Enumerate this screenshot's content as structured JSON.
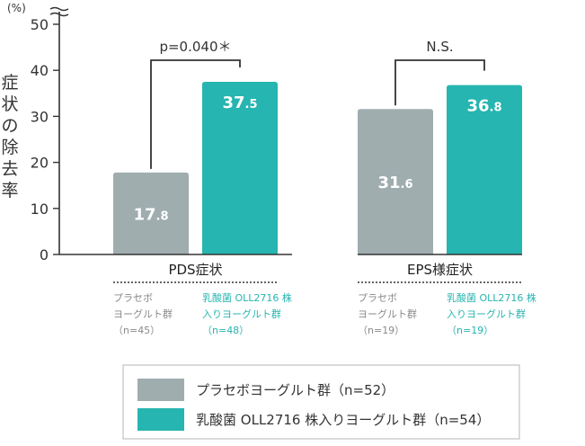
{
  "chart_data": {
    "type": "bar",
    "unit_label": "(%)",
    "ylabel": "症状の除去率",
    "ylim": [
      0,
      50
    ],
    "yticks": [
      "0",
      "10",
      "20",
      "30",
      "40",
      "50"
    ],
    "axis_break": true,
    "grid": false,
    "categories": [
      "PDS症状",
      "EPS様症状"
    ],
    "series": [
      {
        "name": "プラセボヨーグルト群（n=52）",
        "values": [
          17.8,
          31.6
        ],
        "color": "#9fadaf"
      },
      {
        "name": "乳酸菌 OLL2716 株入りヨーグルト群（n=54）",
        "values": [
          37.5,
          36.8
        ],
        "color": "#26b5b0"
      }
    ],
    "value_labels": [
      [
        {
          "int": "17",
          "dec": ".8"
        },
        {
          "int": "31",
          "dec": ".6"
        }
      ],
      [
        {
          "int": "37",
          "dec": ".5"
        },
        {
          "int": "36",
          "dec": ".8"
        }
      ]
    ],
    "significance": [
      {
        "label": "p=0.040＊"
      },
      {
        "label": "N.S."
      }
    ],
    "sub_labels": [
      [
        [
          "プラセボ",
          "ヨーグルト群",
          "（n=45）"
        ],
        [
          "乳酸菌 OLL2716 株",
          "入りヨーグルト群",
          "（n=48）"
        ]
      ],
      [
        [
          "プラセボ",
          "ヨーグルト群",
          "（n=19）"
        ],
        [
          "乳酸菌 OLL2716 株",
          "入りヨーグルト群",
          "（n=19）"
        ]
      ]
    ],
    "sub_label_colors": [
      "#8a8a8a",
      "#26b5b0"
    ],
    "legend": {
      "placement": "bottom",
      "entries": [
        "プラセボヨーグルト群（n=52）",
        "乳酸菌 OLL2716 株入りヨーグルト群（n=54）"
      ]
    }
  }
}
